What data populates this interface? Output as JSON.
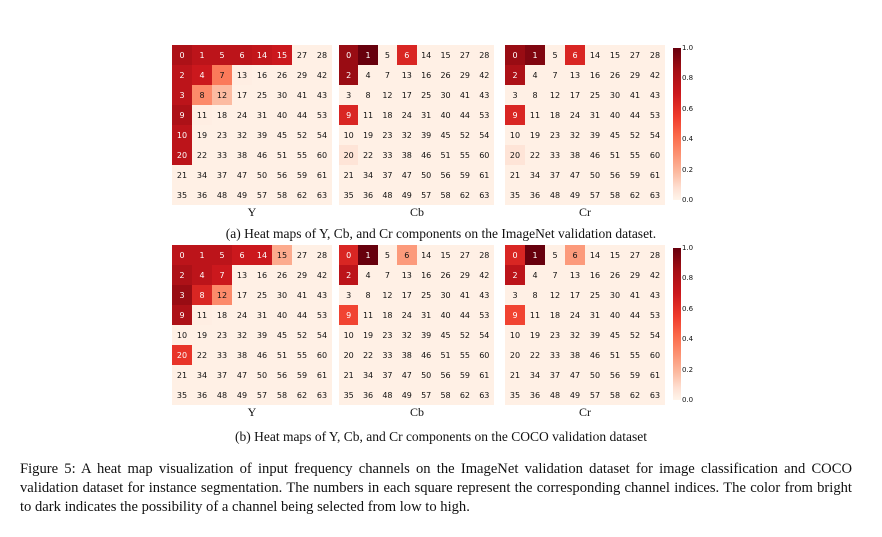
{
  "indices": [
    [
      0,
      1,
      5,
      6,
      14,
      15,
      27,
      28
    ],
    [
      2,
      4,
      7,
      13,
      16,
      26,
      29,
      42
    ],
    [
      3,
      8,
      12,
      17,
      25,
      30,
      41,
      43
    ],
    [
      9,
      11,
      18,
      24,
      31,
      40,
      44,
      53
    ],
    [
      10,
      19,
      23,
      32,
      39,
      45,
      52,
      54
    ],
    [
      20,
      22,
      33,
      38,
      46,
      51,
      55,
      60
    ],
    [
      21,
      34,
      37,
      47,
      50,
      56,
      59,
      61
    ],
    [
      35,
      36,
      48,
      49,
      57,
      58,
      62,
      63
    ]
  ],
  "panels": [
    {
      "caption": "(a) Heat maps of Y, Cb, and Cr components on the ImageNet validation dataset.",
      "maps": [
        {
          "label": "Y",
          "values": [
            [
              0.85,
              0.8,
              0.8,
              0.8,
              0.78,
              0.75,
              0.03,
              0.03
            ],
            [
              0.8,
              0.75,
              0.45,
              0.04,
              0.03,
              0.03,
              0.03,
              0.03
            ],
            [
              0.8,
              0.4,
              0.25,
              0.03,
              0.03,
              0.03,
              0.03,
              0.03
            ],
            [
              0.85,
              0.04,
              0.03,
              0.03,
              0.03,
              0.03,
              0.03,
              0.03
            ],
            [
              0.8,
              0.03,
              0.03,
              0.03,
              0.03,
              0.03,
              0.03,
              0.03
            ],
            [
              0.8,
              0.03,
              0.03,
              0.03,
              0.03,
              0.03,
              0.03,
              0.03
            ],
            [
              0.03,
              0.03,
              0.03,
              0.03,
              0.03,
              0.03,
              0.03,
              0.03
            ],
            [
              0.03,
              0.03,
              0.03,
              0.03,
              0.03,
              0.03,
              0.03,
              0.03
            ]
          ]
        },
        {
          "label": "Cb",
          "values": [
            [
              0.9,
              1.0,
              0.03,
              0.7,
              0.03,
              0.03,
              0.03,
              0.03
            ],
            [
              0.9,
              0.03,
              0.03,
              0.03,
              0.03,
              0.03,
              0.03,
              0.03
            ],
            [
              0.03,
              0.03,
              0.03,
              0.03,
              0.03,
              0.03,
              0.03,
              0.03
            ],
            [
              0.7,
              0.03,
              0.03,
              0.03,
              0.03,
              0.03,
              0.03,
              0.03
            ],
            [
              0.03,
              0.03,
              0.03,
              0.03,
              0.03,
              0.03,
              0.03,
              0.03
            ],
            [
              0.1,
              0.03,
              0.03,
              0.03,
              0.03,
              0.03,
              0.03,
              0.03
            ],
            [
              0.03,
              0.03,
              0.03,
              0.03,
              0.03,
              0.03,
              0.03,
              0.03
            ],
            [
              0.03,
              0.03,
              0.03,
              0.03,
              0.03,
              0.03,
              0.03,
              0.03
            ]
          ]
        },
        {
          "label": "Cr",
          "values": [
            [
              0.9,
              0.95,
              0.03,
              0.7,
              0.03,
              0.03,
              0.03,
              0.03
            ],
            [
              0.85,
              0.03,
              0.03,
              0.03,
              0.03,
              0.03,
              0.03,
              0.03
            ],
            [
              0.03,
              0.03,
              0.03,
              0.03,
              0.03,
              0.03,
              0.03,
              0.03
            ],
            [
              0.7,
              0.03,
              0.03,
              0.03,
              0.03,
              0.03,
              0.03,
              0.03
            ],
            [
              0.03,
              0.03,
              0.03,
              0.03,
              0.03,
              0.03,
              0.03,
              0.03
            ],
            [
              0.1,
              0.03,
              0.03,
              0.03,
              0.03,
              0.03,
              0.03,
              0.03
            ],
            [
              0.03,
              0.03,
              0.03,
              0.03,
              0.03,
              0.03,
              0.03,
              0.03
            ],
            [
              0.03,
              0.03,
              0.03,
              0.03,
              0.03,
              0.03,
              0.03,
              0.03
            ]
          ]
        }
      ]
    },
    {
      "caption": "(b) Heat maps of Y, Cb, and Cr components on the COCO validation dataset",
      "maps": [
        {
          "label": "Y",
          "values": [
            [
              0.8,
              0.8,
              0.8,
              0.75,
              0.75,
              0.3,
              0.03,
              0.03
            ],
            [
              0.85,
              0.8,
              0.75,
              0.03,
              0.03,
              0.03,
              0.03,
              0.03
            ],
            [
              0.9,
              0.7,
              0.4,
              0.03,
              0.03,
              0.03,
              0.03,
              0.03
            ],
            [
              0.85,
              0.04,
              0.03,
              0.03,
              0.03,
              0.03,
              0.03,
              0.03
            ],
            [
              0.03,
              0.03,
              0.03,
              0.03,
              0.03,
              0.03,
              0.03,
              0.03
            ],
            [
              0.65,
              0.03,
              0.03,
              0.03,
              0.03,
              0.03,
              0.03,
              0.03
            ],
            [
              0.03,
              0.03,
              0.03,
              0.03,
              0.03,
              0.03,
              0.03,
              0.03
            ],
            [
              0.03,
              0.03,
              0.03,
              0.03,
              0.03,
              0.03,
              0.03,
              0.03
            ]
          ]
        },
        {
          "label": "Cb",
          "values": [
            [
              0.7,
              1.0,
              0.03,
              0.35,
              0.03,
              0.03,
              0.03,
              0.03
            ],
            [
              0.8,
              0.03,
              0.03,
              0.03,
              0.03,
              0.03,
              0.03,
              0.03
            ],
            [
              0.03,
              0.03,
              0.03,
              0.03,
              0.03,
              0.03,
              0.03,
              0.03
            ],
            [
              0.6,
              0.03,
              0.03,
              0.03,
              0.03,
              0.03,
              0.03,
              0.03
            ],
            [
              0.03,
              0.03,
              0.03,
              0.03,
              0.03,
              0.03,
              0.03,
              0.03
            ],
            [
              0.03,
              0.03,
              0.03,
              0.03,
              0.03,
              0.03,
              0.03,
              0.03
            ],
            [
              0.03,
              0.03,
              0.03,
              0.03,
              0.03,
              0.03,
              0.03,
              0.03
            ],
            [
              0.03,
              0.03,
              0.03,
              0.03,
              0.03,
              0.03,
              0.03,
              0.03
            ]
          ]
        },
        {
          "label": "Cr",
          "values": [
            [
              0.7,
              1.0,
              0.03,
              0.35,
              0.03,
              0.03,
              0.03,
              0.03
            ],
            [
              0.8,
              0.03,
              0.03,
              0.03,
              0.03,
              0.03,
              0.03,
              0.03
            ],
            [
              0.03,
              0.03,
              0.03,
              0.03,
              0.03,
              0.03,
              0.03,
              0.03
            ],
            [
              0.6,
              0.03,
              0.03,
              0.03,
              0.03,
              0.03,
              0.03,
              0.03
            ],
            [
              0.03,
              0.03,
              0.03,
              0.03,
              0.03,
              0.03,
              0.03,
              0.03
            ],
            [
              0.03,
              0.03,
              0.03,
              0.03,
              0.03,
              0.03,
              0.03,
              0.03
            ],
            [
              0.03,
              0.03,
              0.03,
              0.03,
              0.03,
              0.03,
              0.03,
              0.03
            ],
            [
              0.03,
              0.03,
              0.03,
              0.03,
              0.03,
              0.03,
              0.03,
              0.03
            ]
          ]
        }
      ]
    }
  ],
  "colorbar_ticks": [
    "1.0",
    "0.8",
    "0.6",
    "0.4",
    "0.2",
    "0.0"
  ],
  "figure_caption": "Figure 5: A heat map visualization of input frequency channels on the ImageNet validation dataset for image classification and COCO validation dataset for instance segmentation. The numbers in each square represent the corresponding channel indices. The color from bright to dark indicates the possibility of a channel being selected from low to high.",
  "chart_data": {
    "type": "heatmap",
    "color_scale": [
      "#fff5eb",
      "#fee0d2",
      "#fcbba1",
      "#fc9272",
      "#fb6a4a",
      "#ef3b2c",
      "#cb181d",
      "#a50f15",
      "#67000d"
    ],
    "range": [
      0.0,
      1.0
    ]
  }
}
